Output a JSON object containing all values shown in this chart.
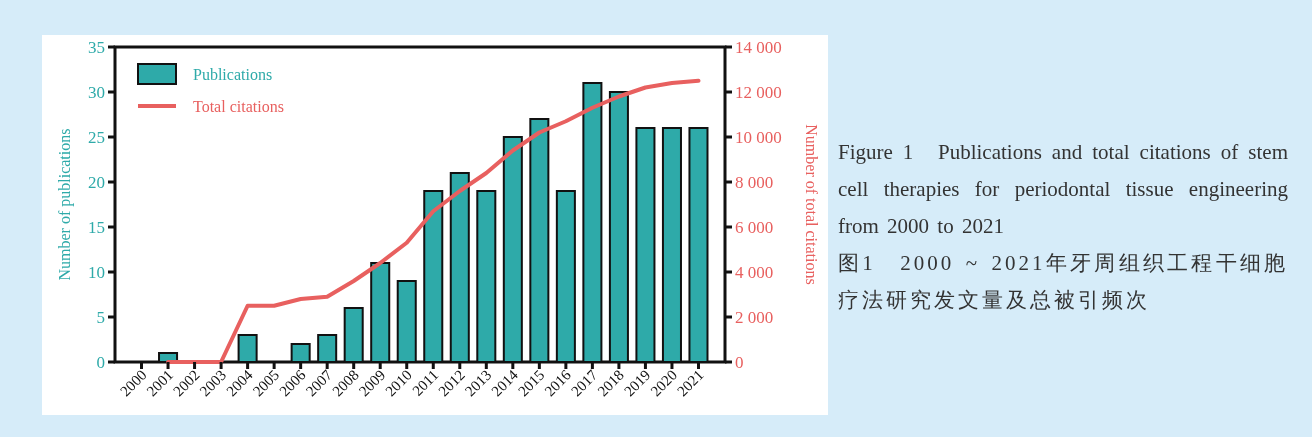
{
  "chart_data": {
    "type": "bar",
    "title": "Figure 1　Publications and total citations of stem cell therapies for periodontal tissue engineering from 2000 to 2021",
    "subtitle": "图1　2000 ~ 2021年牙周组织工程干细胞疗法研究发文量及总被引频次",
    "ylabel": "Number of publications",
    "y2label": "Number of total citations",
    "categories": [
      "2000",
      "2001",
      "2002",
      "2003",
      "2004",
      "2005",
      "2006",
      "2007",
      "2008",
      "2009",
      "2010",
      "2011",
      "2012",
      "2013",
      "2014",
      "2015",
      "2016",
      "2017",
      "2018",
      "2019",
      "2020",
      "2021"
    ],
    "series": [
      {
        "name": "Publications",
        "color": "#2eaaa9",
        "values": [
          0,
          1,
          0,
          0,
          3,
          0,
          2,
          3,
          6,
          11,
          9,
          19,
          21,
          19,
          25,
          27,
          19,
          31,
          30,
          26,
          26,
          26
        ]
      },
      {
        "name": "Total citations",
        "type": "line",
        "axis": "y2",
        "color": "#e8605f",
        "values": [
          null,
          0,
          0,
          0,
          2500,
          2500,
          2800,
          2900,
          3600,
          4400,
          5300,
          6700,
          7600,
          8400,
          9400,
          10200,
          10700,
          11300,
          11800,
          12200,
          12400,
          12500
        ]
      }
    ],
    "ylim": [
      0,
      35
    ],
    "yticks": [
      0,
      5,
      10,
      15,
      20,
      25,
      30,
      35
    ],
    "y2lim": [
      0,
      14000
    ],
    "y2ticks": [
      0,
      {
        "value": 2000,
        "label": "2 000"
      },
      {
        "value": 4000,
        "label": "4 000"
      },
      {
        "value": 6000,
        "label": "6 000"
      },
      {
        "value": 8000,
        "label": "8 000"
      },
      {
        "value": 10000,
        "label": "10 000"
      },
      {
        "value": 12000,
        "label": "12 000"
      },
      {
        "value": 14000,
        "label": "14 000"
      }
    ],
    "legend": "top left",
    "grid": false
  }
}
